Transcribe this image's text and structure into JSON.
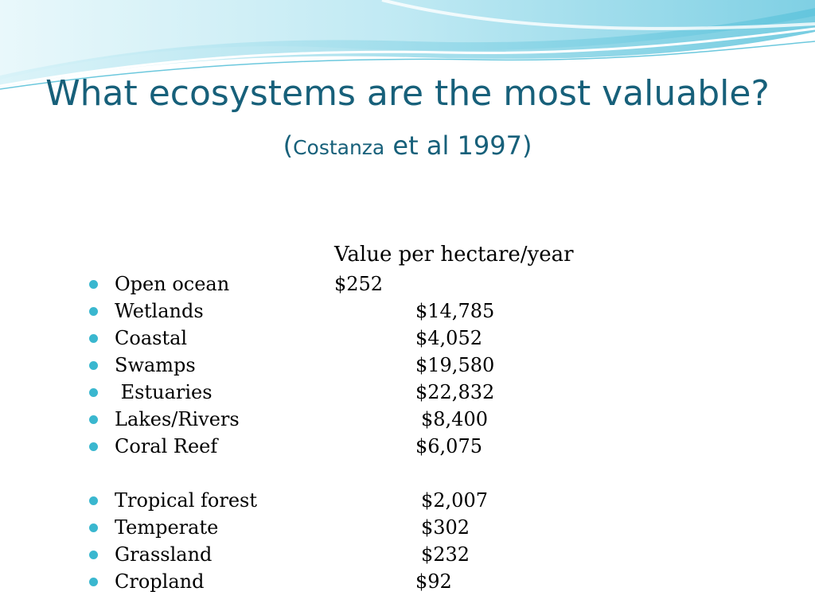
{
  "slide": {
    "title": "What ecosystems are the most valuable?",
    "subtitle_open": "(",
    "subtitle_author": "Costanza",
    "subtitle_rest": " et al 1997)",
    "column_header": "Value per hectare/year",
    "items": [
      {
        "name": "Open ocean",
        "value": "$252"
      },
      {
        "name": "Wetlands",
        "value": "$14,785"
      },
      {
        "name": "Coastal",
        "value": "$4,052"
      },
      {
        "name": "Swamps",
        "value": "$19,580"
      },
      {
        "name": " Estuaries",
        "value": "$22,832"
      },
      {
        "name": "Lakes/Rivers",
        "value": "$8,400"
      },
      {
        "name": "Coral Reef",
        "value": "$6,075"
      },
      {
        "name": "Tropical forest",
        "value": "$2,007"
      },
      {
        "name": "Temperate",
        "value": "$302"
      },
      {
        "name": "Grassland",
        "value": "$232"
      },
      {
        "name": "Cropland",
        "value": "$92"
      }
    ],
    "colors": {
      "title": "#17607a",
      "bullet": "#3ab7cf",
      "wave_light": "#c9eef5",
      "wave_mid": "#8fd8e8",
      "wave_dark": "#4fbcd4"
    }
  }
}
